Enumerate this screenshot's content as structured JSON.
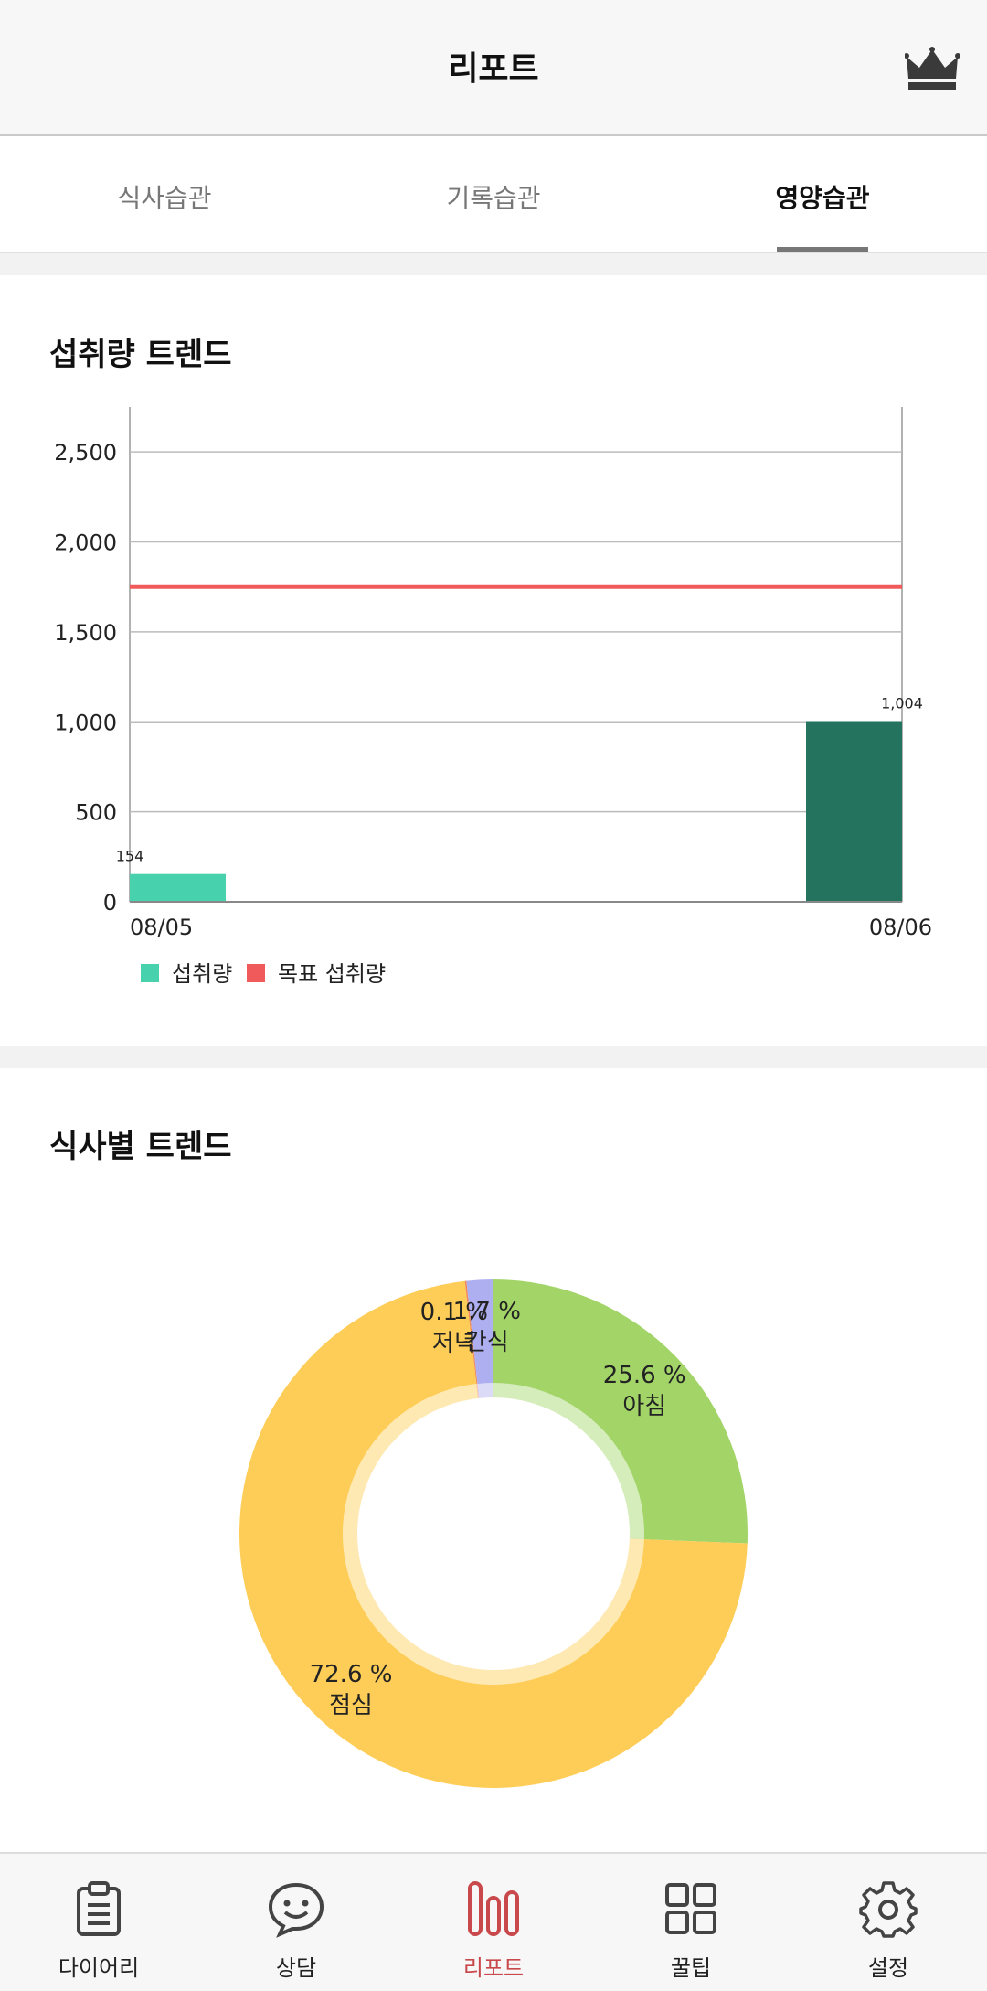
{
  "header": {
    "title": "리포트",
    "premium_icon": "crown-icon"
  },
  "tabs": [
    {
      "label": "식사습관",
      "active": false
    },
    {
      "label": "기록습관",
      "active": false
    },
    {
      "label": "영양습관",
      "active": true
    }
  ],
  "intake_section": {
    "title": "섭취량 트렌드"
  },
  "meal_section": {
    "title": "식사별 트렌드"
  },
  "chart_data": [
    {
      "type": "bar",
      "categories": [
        "08/05",
        "08/06"
      ],
      "series": [
        {
          "name": "섭취량",
          "values": [
            154,
            1004
          ],
          "colors": [
            "#48d1ad",
            "#23735e"
          ]
        }
      ],
      "target_line": {
        "name": "목표 섭취량",
        "value": 1750,
        "color": "#f05a5a"
      },
      "yticks": [
        "0",
        "500",
        "1,000",
        "1,500",
        "2,000",
        "2,500"
      ],
      "yvalues": [
        0,
        500,
        1000,
        1500,
        2000,
        2500
      ],
      "ylim": [
        0,
        2750
      ],
      "data_labels": [
        "154",
        "1,004"
      ],
      "legend": [
        "섭취량",
        "목표 섭취량"
      ],
      "grid": true
    },
    {
      "type": "pie",
      "slices": [
        {
          "label": "아침",
          "percent": 25.6,
          "percent_text": "25.6 %",
          "color": "#a2d468"
        },
        {
          "label": "점심",
          "percent": 72.6,
          "percent_text": "72.6 %",
          "color": "#fecd57"
        },
        {
          "label": "저녁",
          "percent": 0.1,
          "percent_text": "0.1 %",
          "color": "#f08a5a"
        },
        {
          "label": "간식",
          "percent": 1.7,
          "percent_text": "1.7 %",
          "color": "#aeaff0"
        }
      ]
    }
  ],
  "bottom_nav": [
    {
      "label": "다이어리",
      "icon": "clipboard-icon",
      "active": false
    },
    {
      "label": "상담",
      "icon": "chat-smile-icon",
      "active": false
    },
    {
      "label": "리포트",
      "icon": "bar-report-icon",
      "active": true
    },
    {
      "label": "꿀팁",
      "icon": "grid-icon",
      "active": false
    },
    {
      "label": "설정",
      "icon": "gear-icon",
      "active": false
    }
  ]
}
